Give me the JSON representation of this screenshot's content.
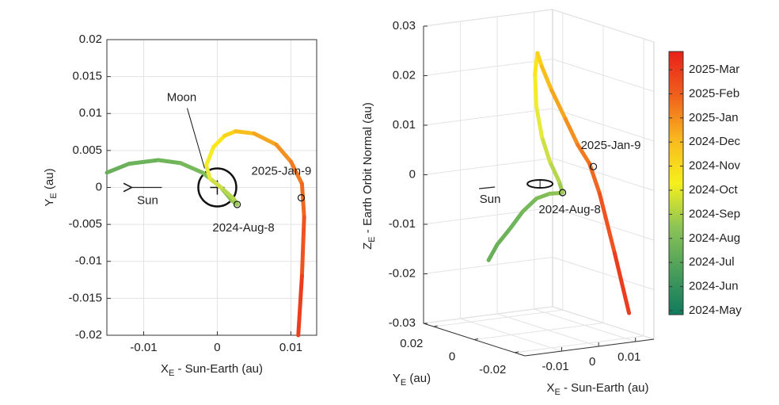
{
  "chart_data": [
    {
      "type": "trajectory2d",
      "xlabel": {
        "text": "X",
        "sub": "E",
        "rest": " - Sun-Earth (au)"
      },
      "ylabel": {
        "text": "Y",
        "sub": "E",
        "rest": " (au)"
      },
      "xlim": [
        -0.015,
        0.0135
      ],
      "xticks": [
        -0.01,
        0,
        0.01
      ],
      "ylim": [
        -0.02,
        0.02
      ],
      "yticks": [
        -0.02,
        -0.015,
        -0.01,
        -0.005,
        0,
        0.005,
        0.01,
        0.015,
        0.02
      ],
      "grid": true,
      "series": [
        {
          "x": [
            -0.015,
            -0.012,
            -0.008,
            -0.005,
            -0.002,
            0.0005,
            0.002,
            0.0027,
            0.0022,
            0.0005,
            -0.001,
            -0.0015,
            -0.0005,
            0.001,
            0.0025,
            0.005,
            0.008,
            0.01,
            0.0115,
            0.0118,
            0.0115,
            0.011
          ],
          "y": [
            0.002,
            0.0032,
            0.0037,
            0.0033,
            0.002,
            0,
            -0.0018,
            -0.0023,
            -0.0015,
            0,
            0.0012,
            0.003,
            0.0055,
            0.007,
            0.0076,
            0.0073,
            0.0058,
            0.0035,
            0.0005,
            -0.004,
            -0.012,
            -0.02
          ],
          "colors": [
            "#6aaf5a",
            "#6cb25a",
            "#70b55a",
            "#76b85a",
            "#80bc58",
            "#8cc156",
            "#96c654",
            "#9fca52",
            "#b6d64c",
            "#cfe045",
            "#e6ea3a",
            "#f5ec28",
            "#fce61a",
            "#fad21a",
            "#f8be1c",
            "#f6a61e",
            "#f49020",
            "#f27a20",
            "#f06820",
            "#ee5420",
            "#ec3e1e",
            "#ea2a1c"
          ]
        }
      ],
      "events": [
        {
          "label": "2024-Aug-8",
          "x": 0.0027,
          "y": -0.0023
        },
        {
          "label": "2025-Jan-9",
          "x": 0.0114,
          "y": -0.0014
        }
      ],
      "moon_label": "Moon",
      "sun_label": "Sun"
    },
    {
      "type": "trajectory3d",
      "xlabel": {
        "text": "X",
        "sub": "E",
        "rest": " - Sun-Earth (au)"
      },
      "ylabel": {
        "text": "Y",
        "sub": "E",
        "rest": " (au)"
      },
      "zlabel": {
        "text": "Z",
        "sub": "E",
        "rest": " - Earth Orbit Normal (au)"
      },
      "xlim": [
        -0.02,
        0.015
      ],
      "xticks": [
        -0.01,
        0,
        0.01
      ],
      "ylim": [
        -0.025,
        0.025
      ],
      "yticks": [
        0.02,
        0,
        -0.02
      ],
      "zlim": [
        -0.03,
        0.03
      ],
      "zticks": [
        -0.03,
        -0.02,
        -0.01,
        0,
        0.01,
        0.02,
        0.03
      ],
      "grid": true,
      "series": [
        {
          "x": [
            -0.015,
            -0.012,
            -0.008,
            -0.005,
            -0.002,
            0.0005,
            0.002,
            0.0027,
            0.0022,
            0.0005,
            -0.001,
            -0.0015,
            -0.0005,
            0.001,
            0.0025,
            0.005,
            0.008,
            0.01,
            0.0115,
            0.0118,
            0.0115,
            0.011
          ],
          "y": [
            0.002,
            0.0032,
            0.0037,
            0.0033,
            0.002,
            0,
            -0.0018,
            -0.0023,
            -0.0015,
            0,
            0.0012,
            0.003,
            0.0055,
            0.007,
            0.0076,
            0.0073,
            0.0058,
            0.0035,
            0.0005,
            -0.004,
            -0.012,
            -0.02
          ],
          "z": [
            -0.0147,
            -0.012,
            -0.009,
            -0.006,
            -0.0035,
            -0.0025,
            -0.0023,
            -0.0022,
            0,
            0.004,
            0.009,
            0.015,
            0.021,
            0.0249,
            0.022,
            0.017,
            0.011,
            0.006,
            0.0025,
            -0.003,
            -0.014,
            -0.025
          ],
          "colors": [
            "#6aaf5a",
            "#6cb25a",
            "#70b55a",
            "#76b85a",
            "#80bc58",
            "#8cc156",
            "#96c654",
            "#9fca52",
            "#b6d64c",
            "#cfe045",
            "#e6ea3a",
            "#f5ec28",
            "#fce61a",
            "#fad21a",
            "#f8be1c",
            "#f6a61e",
            "#f49020",
            "#f27a20",
            "#f06820",
            "#ee5420",
            "#ec3e1e",
            "#ea2a1c"
          ]
        }
      ],
      "events": [
        {
          "label": "2024-Aug-8",
          "x": 0.0027,
          "y": -0.0023,
          "z": -0.0022
        },
        {
          "label": "2025-Jan-9",
          "x": 0.0115,
          "y": -0.0015,
          "z": 0.0021
        }
      ],
      "sun_label": "Sun",
      "colorbar": {
        "colors": [
          "#0f7a5e",
          "#4a9e5a",
          "#8cc456",
          "#f6f01c",
          "#f9b81e",
          "#f0601c",
          "#e8201a"
        ],
        "ticks": [
          "2024-May",
          "2024-Jun",
          "2024-Jul",
          "2024-Aug",
          "2024-Sep",
          "2024-Oct",
          "2024-Nov",
          "2024-Dec",
          "2025-Jan",
          "2025-Feb",
          "2025-Mar"
        ]
      }
    }
  ]
}
